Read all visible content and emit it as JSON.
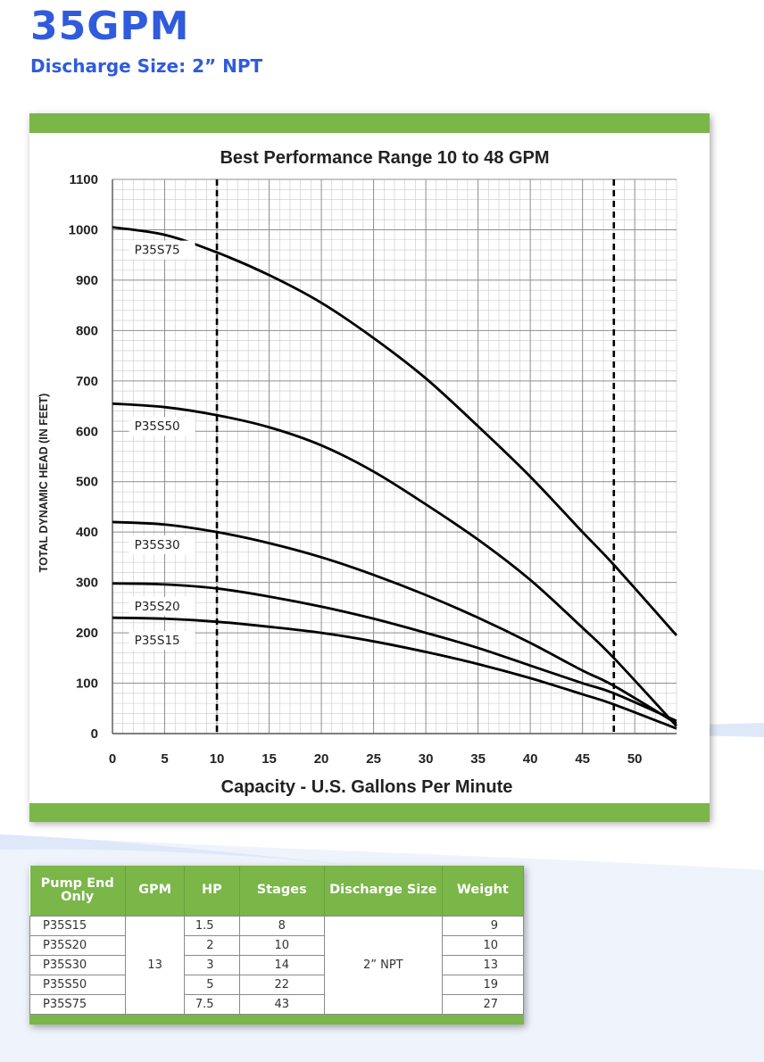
{
  "header": {
    "title": "35GPM",
    "subtitle": "Discharge Size: 2” NPT"
  },
  "colors": {
    "accent_blue": "#2f5bdc",
    "accent_green": "#7ab648"
  },
  "chart_data": {
    "type": "line",
    "title": "Best Performance Range 10 to 48 GPM",
    "xlabel": "Capacity - U.S. Gallons Per Minute",
    "ylabel": "TOTAL DYNAMIC HEAD (IN FEET)",
    "xlim": [
      0,
      54
    ],
    "ylim": [
      0,
      1100
    ],
    "x_ticks": [
      "0",
      "5",
      "10",
      "15",
      "20",
      "25",
      "30",
      "35",
      "40",
      "45",
      "50"
    ],
    "y_ticks": [
      "0",
      "100",
      "200",
      "300",
      "400",
      "500",
      "600",
      "700",
      "800",
      "900",
      "1000",
      "1100"
    ],
    "grid": true,
    "best_range_lines": [
      10,
      48
    ],
    "series": [
      {
        "name": "P35S75",
        "x": [
          0,
          5,
          10,
          15,
          20,
          25,
          30,
          35,
          40,
          45,
          48,
          54
        ],
        "y": [
          1005,
          990,
          955,
          910,
          855,
          785,
          705,
          610,
          510,
          400,
          335,
          195
        ]
      },
      {
        "name": "P35S50",
        "x": [
          0,
          5,
          10,
          15,
          20,
          25,
          30,
          35,
          40,
          45,
          48,
          54
        ],
        "y": [
          655,
          648,
          632,
          608,
          572,
          520,
          455,
          385,
          305,
          210,
          150,
          15
        ]
      },
      {
        "name": "P35S30",
        "x": [
          0,
          5,
          10,
          15,
          20,
          25,
          30,
          35,
          40,
          45,
          48,
          54
        ],
        "y": [
          420,
          415,
          400,
          378,
          350,
          315,
          275,
          230,
          180,
          125,
          95,
          20
        ]
      },
      {
        "name": "P35S20",
        "x": [
          0,
          5,
          10,
          15,
          20,
          25,
          30,
          35,
          40,
          45,
          48,
          54
        ],
        "y": [
          298,
          296,
          288,
          272,
          252,
          228,
          200,
          170,
          135,
          100,
          80,
          25
        ]
      },
      {
        "name": "P35S15",
        "x": [
          0,
          5,
          10,
          15,
          20,
          25,
          30,
          35,
          40,
          45,
          48,
          54
        ],
        "y": [
          230,
          228,
          222,
          212,
          200,
          183,
          162,
          138,
          110,
          78,
          58,
          10
        ]
      }
    ]
  },
  "table": {
    "headers": [
      "Pump End Only",
      "GPM",
      "HP",
      "Stages",
      "Discharge Size",
      "Weight"
    ],
    "gpm": "13",
    "discharge": "2” NPT",
    "rows": [
      {
        "model": "P35S15",
        "hp": "1.5",
        "stages": "8",
        "weight": "9"
      },
      {
        "model": "P35S20",
        "hp": "2",
        "stages": "10",
        "weight": "10"
      },
      {
        "model": "P35S30",
        "hp": "3",
        "stages": "14",
        "weight": "13"
      },
      {
        "model": "P35S50",
        "hp": "5",
        "stages": "22",
        "weight": "19"
      },
      {
        "model": "P35S75",
        "hp": "7.5",
        "stages": "43",
        "weight": "27"
      }
    ]
  }
}
